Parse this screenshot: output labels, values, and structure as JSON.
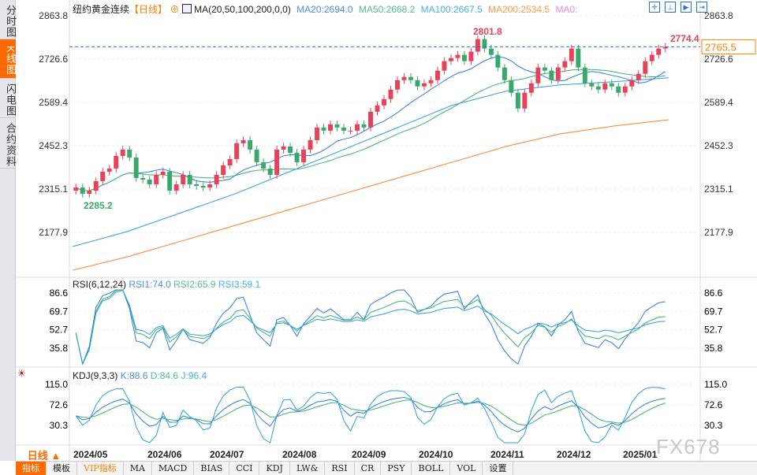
{
  "sidebar": {
    "items": [
      {
        "label": "分时图"
      },
      {
        "label": "K线图",
        "active": true
      },
      {
        "label": "闪电图"
      },
      {
        "label": "合约资料"
      }
    ]
  },
  "header": {
    "instrument": "纽约黄金连续",
    "period": "【日线】",
    "ma_label": "MA(20,50,100,200,0,0)",
    "ma20": "MA20:2694.0",
    "ma50": "MA50:2668.2",
    "ma100": "MA100:2667.5",
    "ma200": "MA200:2534.5",
    "ma0": "MA0:"
  },
  "colors": {
    "up": "#e8415a",
    "down": "#3aa86b",
    "ma20": "#2a7de1",
    "ma50": "#3cb371",
    "ma100": "#2aa0d8",
    "ma200": "#ff7f27",
    "accent": "#ff6a00"
  },
  "toolbar_icons": [
    "crosshair-icon",
    "fit-icon",
    "zoom-in-icon",
    "scroll-right-icon"
  ],
  "price_axis": {
    "ticks": [
      "2863.8",
      "2726.6",
      "2589.4",
      "2452.3",
      "2315.1",
      "2177.9"
    ],
    "range": [
      2177.9,
      2863.8
    ],
    "current": "2765.5"
  },
  "annotations": {
    "high": "2801.8",
    "low": "2285.2",
    "recent_high": "2774.4"
  },
  "rsi": {
    "label": "RSI(6,12,24)",
    "rsi1": "RSI1:74.0",
    "rsi2": "RSI2:65.9",
    "rsi3": "RSI3:59.1",
    "ticks": [
      "86.6",
      "69.7",
      "52.7",
      "35.8"
    ]
  },
  "kdj": {
    "label": "KDJ(9,3,3)",
    "k": "K:88.6",
    "d": "D:84.6",
    "j": "J:96.4",
    "ticks": [
      "115.0",
      "72.6",
      "30.3"
    ]
  },
  "date_axis": [
    "2024/05",
    "2024/06",
    "2024/07",
    "2024/08",
    "2024/09",
    "2024/10",
    "2024/11",
    "2024/12",
    "2025/01"
  ],
  "period_selector": "日线 ▲",
  "tabs": [
    "指标",
    "模板",
    "VIP指标",
    "MA",
    "MACD",
    "BIAS",
    "CCI",
    "KDJ",
    "LW&",
    "RSI",
    "CR",
    "PSY",
    "BOLL",
    "VOL",
    "设置"
  ],
  "watermark": "FX678",
  "chart_data": {
    "type": "candlestick",
    "closes": [
      2320,
      2300,
      2310,
      2340,
      2370,
      2380,
      2420,
      2440,
      2415,
      2350,
      2345,
      2330,
      2360,
      2370,
      2310,
      2330,
      2360,
      2330,
      2325,
      2320,
      2330,
      2360,
      2390,
      2410,
      2460,
      2470,
      2440,
      2400,
      2380,
      2360,
      2440,
      2450,
      2430,
      2400,
      2440,
      2470,
      2510,
      2500,
      2520,
      2510,
      2500,
      2500,
      2520,
      2510,
      2560,
      2580,
      2600,
      2630,
      2660,
      2670,
      2660,
      2640,
      2650,
      2660,
      2690,
      2720,
      2730,
      2740,
      2720,
      2750,
      2790,
      2760,
      2740,
      2700,
      2660,
      2620,
      2570,
      2620,
      2650,
      2700,
      2690,
      2660,
      2700,
      2720,
      2760,
      2700,
      2650,
      2640,
      2630,
      2650,
      2640,
      2620,
      2640,
      2660,
      2680,
      2720,
      2740,
      2760,
      2765.5
    ],
    "ma100": [
      2133,
      2180,
      2240,
      2300,
      2370,
      2440,
      2510,
      2580,
      2625,
      2645,
      2655,
      2667.5
    ],
    "ma200": [
      2058,
      2100,
      2150,
      2200,
      2250,
      2300,
      2350,
      2400,
      2450,
      2490,
      2515,
      2534.5
    ]
  }
}
